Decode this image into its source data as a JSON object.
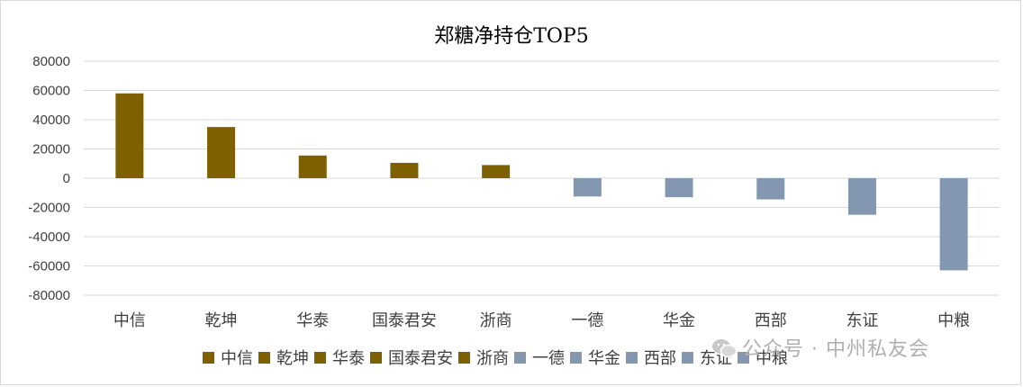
{
  "chart_data": {
    "type": "bar",
    "title": "郑糖净持仓TOP5",
    "categories": [
      "中信",
      "乾坤",
      "华泰",
      "国泰君安",
      "浙商",
      "一德",
      "华金",
      "西部",
      "东证",
      "中粮"
    ],
    "values": [
      58000,
      35000,
      15500,
      10500,
      9000,
      -12500,
      -13000,
      -14500,
      -25000,
      -63000
    ],
    "colors": [
      "#7f6000",
      "#7f6000",
      "#7f6000",
      "#7f6000",
      "#7f6000",
      "#8497b0",
      "#8497b0",
      "#8497b0",
      "#8497b0",
      "#8497b0"
    ],
    "ylim": [
      -80000,
      80000
    ],
    "yticks": [
      "80000",
      "60000",
      "40000",
      "20000",
      "0",
      "-20000",
      "-40000",
      "-60000",
      "-80000"
    ],
    "grid": true,
    "legend": {
      "placement": "bottom",
      "entries": [
        {
          "label": "中信",
          "color": "#7f6000"
        },
        {
          "label": "乾坤",
          "color": "#7f6000"
        },
        {
          "label": "华泰",
          "color": "#7f6000"
        },
        {
          "label": "国泰君安",
          "color": "#7f6000"
        },
        {
          "label": "浙商",
          "color": "#7f6000"
        },
        {
          "label": "一德",
          "color": "#8497b0"
        },
        {
          "label": "华金",
          "color": "#8497b0"
        },
        {
          "label": "西部",
          "color": "#8497b0"
        },
        {
          "label": "东证",
          "color": "#8497b0"
        },
        {
          "label": "中粮",
          "color": "#8497b0"
        }
      ]
    }
  },
  "watermark": {
    "icon": "wechat-icon",
    "text": "公众号 · 中州私友会"
  }
}
